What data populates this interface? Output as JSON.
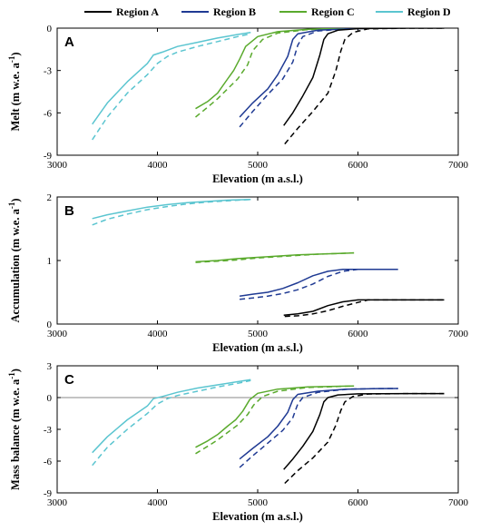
{
  "legend": [
    {
      "name": "Region A",
      "color": "#000000"
    },
    {
      "name": "Region B",
      "color": "#1f3a93"
    },
    {
      "name": "Region C",
      "color": "#5aaa2d"
    },
    {
      "name": "Region D",
      "color": "#5bc5d0"
    }
  ],
  "line_styles": {
    "solid": "",
    "dashed": ""
  },
  "chart_data": [
    {
      "type": "line",
      "panel": "A",
      "xlabel": "Elevation (m a.s.l.)",
      "ylabel": "Melt (m w.e. a",
      "ylabel_sup": "-1",
      "ylabel_end": ")",
      "xlim": [
        3000,
        7000
      ],
      "ylim": [
        -9,
        0
      ],
      "xticks": [
        3000,
        4000,
        5000,
        6000,
        7000
      ],
      "yticks": [
        -9,
        -6,
        -3,
        0
      ],
      "zero_line": false,
      "series": [
        {
          "region": "Region D",
          "style": "solid",
          "x": [
            3350,
            3500,
            3700,
            3900,
            3960,
            4050,
            4200,
            4400,
            4600,
            4800,
            4930
          ],
          "y": [
            -6.8,
            -5.3,
            -3.8,
            -2.5,
            -1.9,
            -1.7,
            -1.3,
            -1.0,
            -0.7,
            -0.45,
            -0.3
          ]
        },
        {
          "region": "Region D",
          "style": "dashed",
          "x": [
            3350,
            3500,
            3700,
            3900,
            4000,
            4100,
            4200,
            4400,
            4600,
            4800,
            4930
          ],
          "y": [
            -7.9,
            -6.3,
            -4.6,
            -3.3,
            -2.5,
            -2.0,
            -1.7,
            -1.3,
            -0.95,
            -0.6,
            -0.4
          ]
        },
        {
          "region": "Region C",
          "style": "solid",
          "x": [
            4380,
            4500,
            4600,
            4700,
            4760,
            4820,
            4880,
            5000,
            5200,
            5500,
            5900
          ],
          "y": [
            -5.7,
            -5.2,
            -4.6,
            -3.6,
            -3.0,
            -2.2,
            -1.3,
            -0.6,
            -0.25,
            -0.08,
            0
          ]
        },
        {
          "region": "Region C",
          "style": "dashed",
          "x": [
            4380,
            4500,
            4600,
            4700,
            4800,
            4900,
            4950,
            5050,
            5200,
            5500,
            5900
          ],
          "y": [
            -6.3,
            -5.6,
            -5.0,
            -4.3,
            -3.6,
            -2.6,
            -1.6,
            -0.8,
            -0.35,
            -0.1,
            0
          ]
        },
        {
          "region": "Region B",
          "style": "solid",
          "x": [
            4820,
            4950,
            5100,
            5200,
            5300,
            5350,
            5400,
            5600,
            5900,
            6200,
            6400
          ],
          "y": [
            -6.3,
            -5.3,
            -4.3,
            -3.3,
            -2.0,
            -0.8,
            -0.4,
            -0.15,
            -0.05,
            0,
            0
          ]
        },
        {
          "region": "Region B",
          "style": "dashed",
          "x": [
            4820,
            4950,
            5100,
            5250,
            5350,
            5400,
            5450,
            5600,
            5900,
            6200,
            6400
          ],
          "y": [
            -7.0,
            -5.9,
            -4.7,
            -3.6,
            -2.4,
            -1.2,
            -0.6,
            -0.2,
            -0.05,
            0,
            0
          ]
        },
        {
          "region": "Region A",
          "style": "solid",
          "x": [
            5260,
            5350,
            5450,
            5550,
            5620,
            5660,
            5700,
            5800,
            6000,
            6500,
            6860
          ],
          "y": [
            -6.9,
            -6.0,
            -4.8,
            -3.5,
            -1.9,
            -0.8,
            -0.4,
            -0.15,
            -0.03,
            0,
            0
          ]
        },
        {
          "region": "Region A",
          "style": "dashed",
          "x": [
            5270,
            5400,
            5550,
            5700,
            5780,
            5830,
            5870,
            5950,
            6100,
            6500,
            6860
          ],
          "y": [
            -8.2,
            -7.1,
            -5.9,
            -4.6,
            -3.0,
            -1.6,
            -0.8,
            -0.3,
            -0.05,
            0,
            0
          ]
        }
      ]
    },
    {
      "type": "line",
      "panel": "B",
      "xlabel": "Elevation (m a.s.l.)",
      "ylabel": "Accumulation (m w.e. a",
      "ylabel_sup": "-1",
      "ylabel_end": ")",
      "xlim": [
        3000,
        7000
      ],
      "ylim": [
        0,
        2
      ],
      "xticks": [
        3000,
        4000,
        5000,
        6000,
        7000
      ],
      "yticks": [
        0,
        1,
        2
      ],
      "zero_line": false,
      "series": [
        {
          "region": "Region D",
          "style": "solid",
          "x": [
            3350,
            3500,
            3700,
            3900,
            4100,
            4300,
            4500,
            4700,
            4930
          ],
          "y": [
            1.66,
            1.72,
            1.78,
            1.84,
            1.88,
            1.91,
            1.93,
            1.95,
            1.96
          ]
        },
        {
          "region": "Region D",
          "style": "dashed",
          "x": [
            3350,
            3500,
            3700,
            3900,
            4100,
            4300,
            4500,
            4700,
            4930
          ],
          "y": [
            1.56,
            1.65,
            1.73,
            1.8,
            1.85,
            1.89,
            1.92,
            1.94,
            1.96
          ]
        },
        {
          "region": "Region C",
          "style": "solid",
          "x": [
            4380,
            4600,
            4800,
            5000,
            5200,
            5400,
            5600,
            5800,
            5960
          ],
          "y": [
            0.98,
            1.0,
            1.03,
            1.05,
            1.07,
            1.09,
            1.1,
            1.11,
            1.12
          ]
        },
        {
          "region": "Region C",
          "style": "dashed",
          "x": [
            4380,
            4600,
            4800,
            5000,
            5200,
            5400,
            5600,
            5800,
            5960
          ],
          "y": [
            0.97,
            0.99,
            1.01,
            1.04,
            1.06,
            1.08,
            1.1,
            1.11,
            1.12
          ]
        },
        {
          "region": "Region B",
          "style": "solid",
          "x": [
            4820,
            4950,
            5100,
            5250,
            5400,
            5550,
            5700,
            5850,
            6000,
            6200,
            6400
          ],
          "y": [
            0.44,
            0.47,
            0.5,
            0.56,
            0.65,
            0.76,
            0.83,
            0.86,
            0.86,
            0.86,
            0.86
          ]
        },
        {
          "region": "Region B",
          "style": "dashed",
          "x": [
            4820,
            4950,
            5100,
            5250,
            5400,
            5550,
            5700,
            5850,
            6000,
            6200,
            6400
          ],
          "y": [
            0.39,
            0.41,
            0.44,
            0.48,
            0.54,
            0.63,
            0.75,
            0.83,
            0.86,
            0.86,
            0.86
          ]
        },
        {
          "region": "Region A",
          "style": "solid",
          "x": [
            5260,
            5400,
            5550,
            5700,
            5850,
            6000,
            6200,
            6500,
            6860
          ],
          "y": [
            0.14,
            0.16,
            0.2,
            0.29,
            0.35,
            0.38,
            0.38,
            0.38,
            0.38
          ]
        },
        {
          "region": "Region A",
          "style": "dashed",
          "x": [
            5270,
            5400,
            5550,
            5700,
            5850,
            6000,
            6100,
            6500,
            6860
          ],
          "y": [
            0.12,
            0.13,
            0.16,
            0.21,
            0.28,
            0.34,
            0.38,
            0.38,
            0.38
          ]
        }
      ]
    },
    {
      "type": "line",
      "panel": "C",
      "xlabel": "Elevation (m a.s.l.)",
      "ylabel": "Mass balance (m w.e. a",
      "ylabel_sup": "-1",
      "ylabel_end": ")",
      "xlim": [
        3000,
        7000
      ],
      "ylim": [
        -9,
        3
      ],
      "xticks": [
        3000,
        4000,
        5000,
        6000,
        7000
      ],
      "yticks": [
        -9,
        -6,
        -3,
        0,
        3
      ],
      "zero_line": true,
      "series": [
        {
          "region": "Region D",
          "style": "solid",
          "x": [
            3350,
            3500,
            3700,
            3900,
            3960,
            4050,
            4200,
            4400,
            4600,
            4800,
            4930
          ],
          "y": [
            -5.2,
            -3.7,
            -2.1,
            -0.8,
            -0.1,
            0.1,
            0.5,
            0.9,
            1.2,
            1.5,
            1.7
          ]
        },
        {
          "region": "Region D",
          "style": "dashed",
          "x": [
            3350,
            3500,
            3700,
            3900,
            4000,
            4100,
            4200,
            4400,
            4600,
            4800,
            4930
          ],
          "y": [
            -6.4,
            -4.7,
            -3.0,
            -1.5,
            -0.6,
            -0.1,
            0.2,
            0.6,
            1.0,
            1.35,
            1.6
          ]
        },
        {
          "region": "Region C",
          "style": "solid",
          "x": [
            4380,
            4500,
            4600,
            4700,
            4780,
            4850,
            4920,
            5000,
            5200,
            5500,
            5960
          ],
          "y": [
            -4.7,
            -4.1,
            -3.5,
            -2.7,
            -2.1,
            -1.3,
            -0.2,
            0.4,
            0.8,
            1.0,
            1.1
          ]
        },
        {
          "region": "Region C",
          "style": "dashed",
          "x": [
            4380,
            4500,
            4600,
            4700,
            4800,
            4900,
            4960,
            5050,
            5200,
            5500,
            5960
          ],
          "y": [
            -5.3,
            -4.6,
            -4.0,
            -3.3,
            -2.6,
            -1.6,
            -0.7,
            0.1,
            0.6,
            0.95,
            1.1
          ]
        },
        {
          "region": "Region B",
          "style": "solid",
          "x": [
            4820,
            4950,
            5100,
            5200,
            5300,
            5350,
            5400,
            5600,
            5900,
            6200,
            6400
          ],
          "y": [
            -5.8,
            -4.8,
            -3.7,
            -2.7,
            -1.4,
            -0.2,
            0.3,
            0.6,
            0.8,
            0.85,
            0.86
          ]
        },
        {
          "region": "Region B",
          "style": "dashed",
          "x": [
            4820,
            4950,
            5100,
            5250,
            5350,
            5400,
            5450,
            5600,
            5900,
            6200,
            6400
          ],
          "y": [
            -6.6,
            -5.5,
            -4.3,
            -3.1,
            -1.9,
            -0.6,
            0.0,
            0.5,
            0.8,
            0.85,
            0.86
          ]
        },
        {
          "region": "Region A",
          "style": "solid",
          "x": [
            5260,
            5350,
            5450,
            5550,
            5620,
            5660,
            5700,
            5800,
            6000,
            6500,
            6860
          ],
          "y": [
            -6.8,
            -5.8,
            -4.6,
            -3.2,
            -1.6,
            -0.4,
            0.0,
            0.25,
            0.35,
            0.38,
            0.38
          ]
        },
        {
          "region": "Region A",
          "style": "dashed",
          "x": [
            5270,
            5400,
            5550,
            5700,
            5780,
            5830,
            5870,
            5950,
            6100,
            6500,
            6860
          ],
          "y": [
            -8.1,
            -6.9,
            -5.7,
            -4.2,
            -2.6,
            -1.2,
            -0.4,
            0.1,
            0.33,
            0.38,
            0.38
          ]
        }
      ]
    }
  ]
}
